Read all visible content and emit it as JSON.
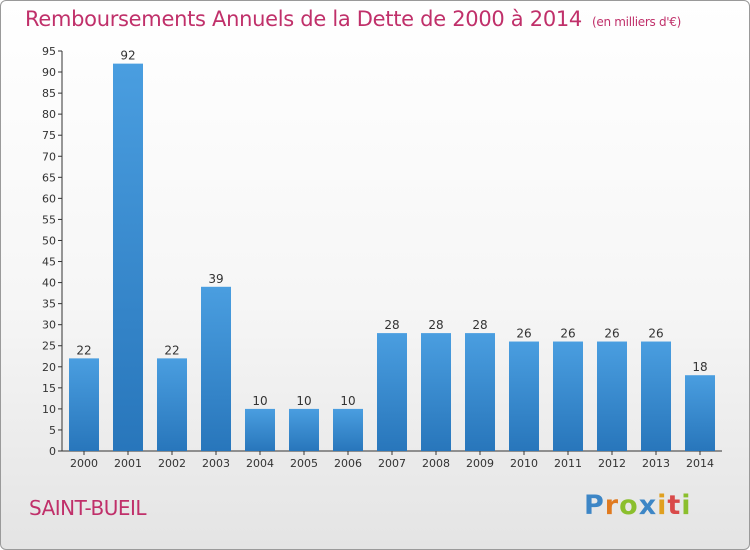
{
  "title": "Remboursements Annuels de la Dette de 2000 à 2014",
  "unit": "(en milliers d'€)",
  "commune": "SAINT-BUEIL",
  "logo": {
    "letters": [
      "P",
      "r",
      "o",
      "x",
      "i",
      "t",
      "i"
    ],
    "colors": [
      "#3d86c6",
      "#e07a1f",
      "#8bbf2d",
      "#3d86c6",
      "#e0a020",
      "#d94a4a",
      "#8bbf2d"
    ]
  },
  "colors": {
    "bar": "#4a9ee0",
    "bar_dark": "#2876bb",
    "title": "#c0306a"
  },
  "chart_data": {
    "type": "bar",
    "categories": [
      "2000",
      "2001",
      "2002",
      "2003",
      "2004",
      "2005",
      "2006",
      "2007",
      "2008",
      "2009",
      "2010",
      "2011",
      "2012",
      "2013",
      "2014"
    ],
    "values": [
      22,
      92,
      22,
      39,
      10,
      10,
      10,
      28,
      28,
      28,
      26,
      26,
      26,
      26,
      18
    ],
    "ylim": [
      0,
      95
    ],
    "yticks": [
      0,
      5,
      10,
      15,
      20,
      25,
      30,
      35,
      40,
      45,
      50,
      55,
      60,
      65,
      70,
      75,
      80,
      85,
      90,
      95
    ],
    "grid": false,
    "title": "Remboursements Annuels de la Dette de 2000 à 2014",
    "xlabel": "",
    "ylabel": ""
  }
}
